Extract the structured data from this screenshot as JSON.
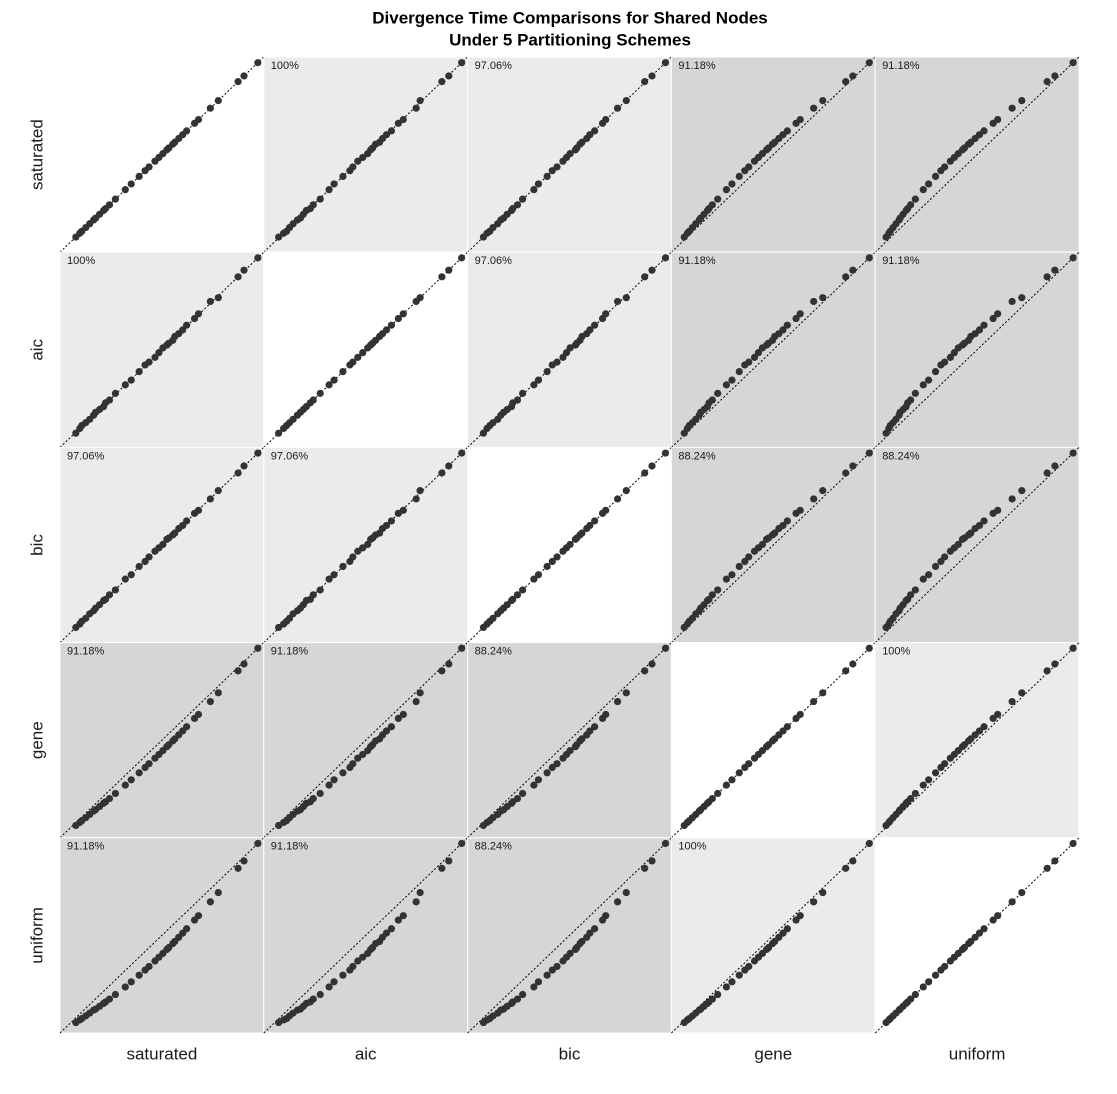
{
  "chart_data": {
    "type": "scatter_matrix",
    "title": [
      "Divergence Time Comparisons for Shared Nodes",
      "Under 5 Partitioning Schemes"
    ],
    "xlim": [
      0,
      1.03
    ],
    "ylim": [
      0,
      1.03
    ],
    "point_color": "#333333",
    "series": [
      {
        "name": "saturated",
        "values": [
          0.08,
          0.1,
          0.11,
          0.13,
          0.15,
          0.17,
          0.18,
          0.2,
          0.22,
          0.23,
          0.25,
          0.28,
          0.33,
          0.36,
          0.4,
          0.43,
          0.45,
          0.48,
          0.5,
          0.52,
          0.54,
          0.55,
          0.57,
          0.58,
          0.6,
          0.62,
          0.64,
          0.68,
          0.7,
          0.76,
          0.8,
          0.9,
          0.93,
          1.0
        ]
      },
      {
        "name": "aic",
        "values": [
          0.075,
          0.1,
          0.115,
          0.13,
          0.148,
          0.17,
          0.185,
          0.2,
          0.215,
          0.235,
          0.25,
          0.285,
          0.33,
          0.355,
          0.4,
          0.435,
          0.45,
          0.475,
          0.5,
          0.525,
          0.54,
          0.55,
          0.565,
          0.585,
          0.6,
          0.62,
          0.645,
          0.68,
          0.705,
          0.77,
          0.79,
          0.9,
          0.935,
          1.0
        ]
      },
      {
        "name": "bic",
        "values": [
          0.08,
          0.098,
          0.112,
          0.128,
          0.152,
          0.168,
          0.182,
          0.2,
          0.222,
          0.228,
          0.252,
          0.278,
          0.335,
          0.358,
          0.402,
          0.428,
          0.452,
          0.482,
          0.5,
          0.518,
          0.545,
          0.552,
          0.568,
          0.578,
          0.602,
          0.618,
          0.642,
          0.682,
          0.698,
          0.758,
          0.802,
          0.895,
          0.932,
          1.0
        ]
      },
      {
        "name": "gene",
        "values": [
          0.065,
          0.081,
          0.09,
          0.106,
          0.123,
          0.141,
          0.148,
          0.165,
          0.182,
          0.19,
          0.207,
          0.234,
          0.278,
          0.306,
          0.343,
          0.371,
          0.391,
          0.42,
          0.44,
          0.46,
          0.481,
          0.491,
          0.511,
          0.522,
          0.543,
          0.564,
          0.586,
          0.63,
          0.651,
          0.719,
          0.765,
          0.881,
          0.917,
          1.0
        ]
      },
      {
        "name": "uniform",
        "values": [
          0.055,
          0.069,
          0.076,
          0.09,
          0.105,
          0.121,
          0.126,
          0.141,
          0.156,
          0.164,
          0.179,
          0.203,
          0.243,
          0.27,
          0.305,
          0.332,
          0.351,
          0.38,
          0.4,
          0.42,
          0.441,
          0.451,
          0.472,
          0.483,
          0.505,
          0.527,
          0.55,
          0.596,
          0.619,
          0.692,
          0.741,
          0.869,
          0.908,
          1.0
        ]
      }
    ],
    "annotations": [
      [
        null,
        "100%",
        "97.06%",
        "91.18%",
        "91.18%"
      ],
      [
        "100%",
        null,
        "97.06%",
        "91.18%",
        "91.18%"
      ],
      [
        "97.06%",
        "97.06%",
        null,
        "88.24%",
        "88.24%"
      ],
      [
        "91.18%",
        "91.18%",
        "88.24%",
        null,
        "100%"
      ],
      [
        "91.18%",
        "91.18%",
        "88.24%",
        "100%",
        null
      ]
    ],
    "panel_fills": [
      [
        "#ffffff",
        "#ebebeb",
        "#ebebeb",
        "#d6d6d6",
        "#d6d6d6"
      ],
      [
        "#ebebeb",
        "#ffffff",
        "#ebebeb",
        "#d6d6d6",
        "#d6d6d6"
      ],
      [
        "#ebebeb",
        "#ebebeb",
        "#ffffff",
        "#d6d6d6",
        "#d6d6d6"
      ],
      [
        "#d6d6d6",
        "#d6d6d6",
        "#d6d6d6",
        "#ffffff",
        "#ebebeb"
      ],
      [
        "#d6d6d6",
        "#d6d6d6",
        "#d6d6d6",
        "#ebebeb",
        "#ffffff"
      ]
    ]
  }
}
